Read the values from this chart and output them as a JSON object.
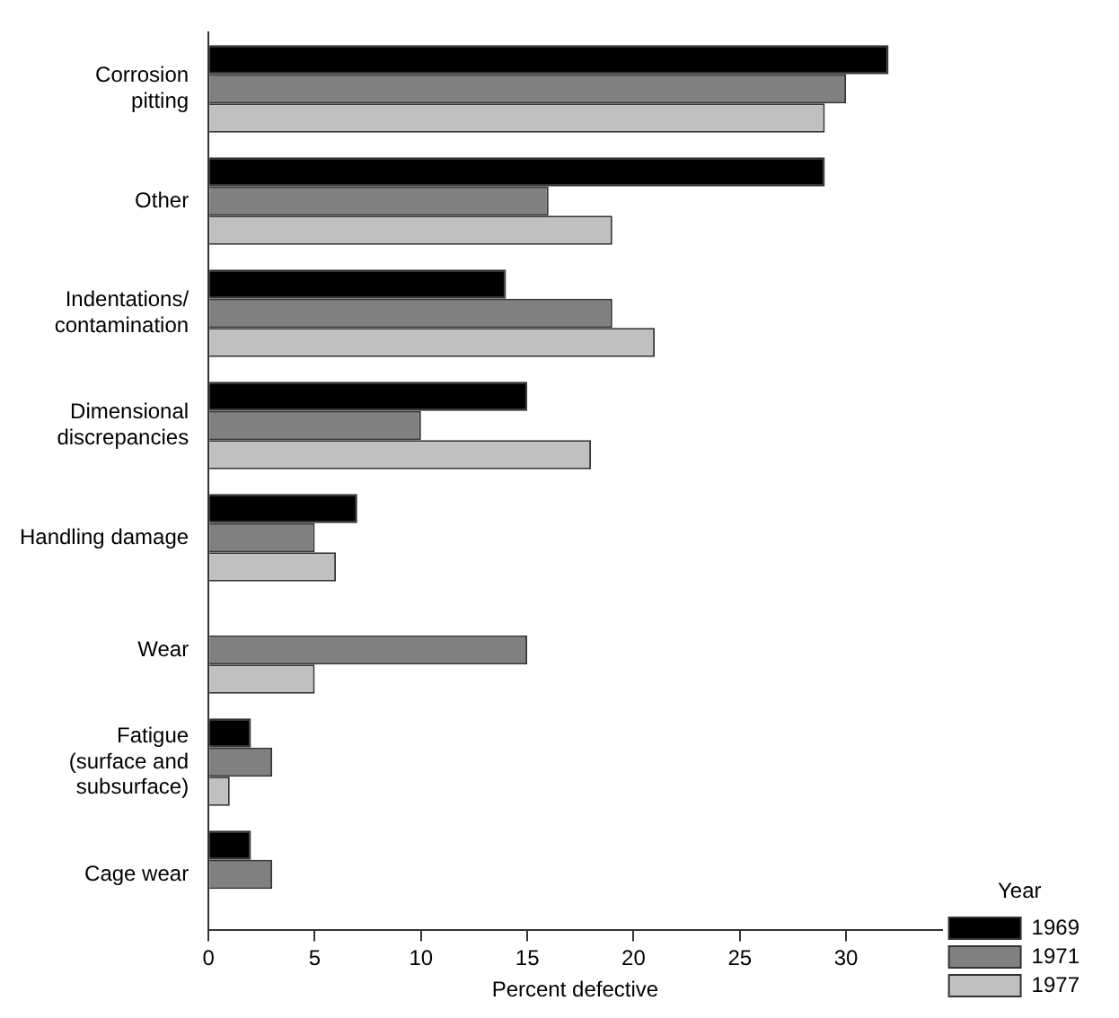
{
  "chart_data": {
    "type": "bar",
    "orientation": "horizontal",
    "xlabel": "Percent defective",
    "legend_title": "Year",
    "legend": "right",
    "grid": false,
    "categories": [
      "Corrosion pitting",
      "Other",
      "Indentations/contamination",
      "Dimensional discrepancies",
      "Handling damage",
      "Wear",
      "Fatigue (surface and subsurface)",
      "Cage wear"
    ],
    "series": [
      {
        "name": "1969",
        "color": "#000000",
        "values": [
          32,
          29,
          14,
          15,
          7,
          null,
          2,
          2
        ]
      },
      {
        "name": "1971",
        "color": "#808080",
        "values": [
          30,
          16,
          19,
          10,
          5,
          15,
          3,
          3
        ]
      },
      {
        "name": "1977",
        "color": "#c0c0c0",
        "values": [
          29,
          19,
          21,
          18,
          6,
          5,
          1,
          null
        ]
      }
    ],
    "xlim": [
      0,
      34.5
    ],
    "xticks": [
      0,
      5,
      10,
      15,
      20,
      25,
      30
    ]
  }
}
